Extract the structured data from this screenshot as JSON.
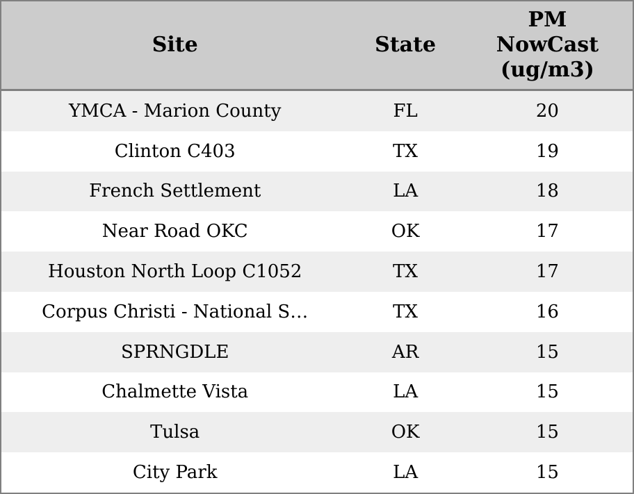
{
  "chart_data": {
    "type": "table",
    "columns": [
      "Site",
      "State",
      "PM NowCast (ug/m3)"
    ],
    "rows": [
      {
        "site": "YMCA - Marion County",
        "state": "FL",
        "pm": 20
      },
      {
        "site": "Clinton C403",
        "state": "TX",
        "pm": 19
      },
      {
        "site": "French Settlement",
        "state": "LA",
        "pm": 18
      },
      {
        "site": "Near Road OKC",
        "state": "OK",
        "pm": 17
      },
      {
        "site": "Houston North Loop C1052",
        "state": "TX",
        "pm": 17
      },
      {
        "site": "Corpus Christi - National S…",
        "state": "TX",
        "pm": 16
      },
      {
        "site": "SPRNGDLE",
        "state": "AR",
        "pm": 15
      },
      {
        "site": "Chalmette Vista",
        "state": "LA",
        "pm": 15
      },
      {
        "site": "Tulsa",
        "state": "OK",
        "pm": 15
      },
      {
        "site": "City Park",
        "state": "LA",
        "pm": 15
      }
    ]
  },
  "header": {
    "site": "Site",
    "state": "State",
    "pm_line1": "PM",
    "pm_line2": "NowCast",
    "pm_line3": "(ug/m3)"
  },
  "colors": {
    "header_bg": "#cccccc",
    "row_stripe_bg": "#eeeeee",
    "row_bg": "#ffffff",
    "border": "#808080",
    "text": "#000000"
  }
}
